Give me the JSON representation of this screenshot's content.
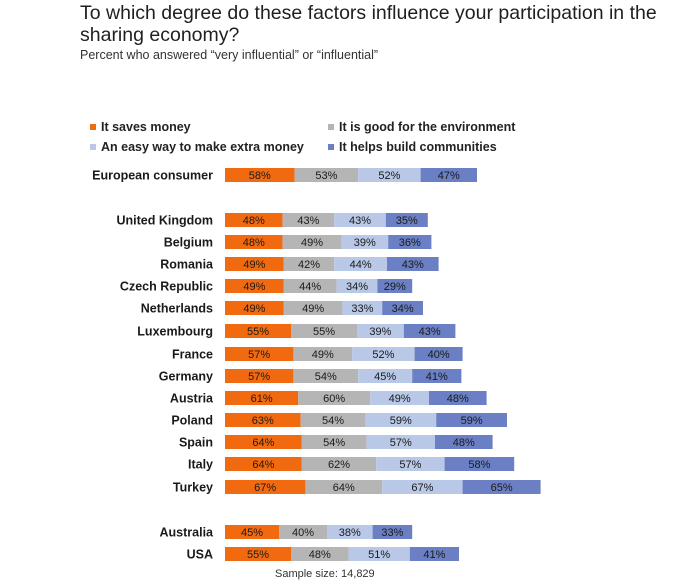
{
  "title": "To which degree do these factors influence your participation in the sharing economy?",
  "subtitle": "Percent who answered “very influential” or “influential”",
  "sample_size_text": "Sample size: 14,829",
  "colors": {
    "saves_money": "#f26a10",
    "environment": "#b5b5b5",
    "extra_money": "#b8c8e6",
    "communities": "#6b7fc4"
  },
  "chart_data": {
    "type": "bar",
    "orientation": "horizontal",
    "stacked": true,
    "title": "To which degree do these factors influence your participation in the sharing economy?",
    "subtitle": "Percent who answered “very influential” or “influential”",
    "legend_position": "top-left",
    "categories": [
      "European consumer",
      "United Kingdom",
      "Belgium",
      "Romania",
      "Czech Republic",
      "Netherlands",
      "Luxembourg",
      "France",
      "Germany",
      "Austria",
      "Poland",
      "Spain",
      "Italy",
      "Turkey",
      "Australia",
      "USA"
    ],
    "series": [
      {
        "name": "It saves money",
        "color": "#f26a10",
        "values": [
          58,
          48,
          48,
          49,
          49,
          49,
          55,
          57,
          57,
          61,
          63,
          64,
          64,
          67,
          45,
          55
        ]
      },
      {
        "name": "It is good for the environment",
        "color": "#b5b5b5",
        "values": [
          53,
          43,
          49,
          42,
          44,
          49,
          55,
          49,
          54,
          60,
          54,
          54,
          62,
          64,
          40,
          48
        ]
      },
      {
        "name": "An easy way to make extra money",
        "color": "#b8c8e6",
        "values": [
          52,
          43,
          39,
          44,
          34,
          33,
          39,
          52,
          45,
          49,
          59,
          57,
          57,
          67,
          38,
          51
        ]
      },
      {
        "name": "It helps build communities",
        "color": "#6b7fc4",
        "values": [
          47,
          35,
          36,
          43,
          29,
          34,
          43,
          40,
          41,
          48,
          59,
          48,
          58,
          65,
          33,
          41
        ]
      }
    ],
    "data_labels": true,
    "value_suffix": "%"
  }
}
